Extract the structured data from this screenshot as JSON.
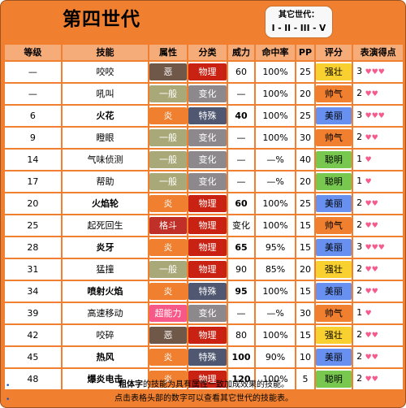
{
  "header": {
    "title": "第四世代",
    "other_gens_label": "其它世代：",
    "other_gens": [
      "I",
      "II",
      "III",
      "V"
    ],
    "separator": "-"
  },
  "columns": [
    "等级",
    "技能",
    "属性",
    "分类",
    "威力",
    "命中率",
    "PP",
    "评分",
    "表演得点"
  ],
  "colors": {
    "dark": "#705848",
    "normal": "#A8A878",
    "fire": "#F08030",
    "fighting": "#C03028",
    "psychic": "#F85888",
    "physical": "#C92112",
    "status": "#8C888C",
    "special": "#4F5870",
    "tough": "#F8D030",
    "cool": "#F08030",
    "beauty": "#6890F0",
    "clever": "#78C850",
    "heart": "#F75A8B"
  },
  "rows": [
    {
      "level": "—",
      "move": "咬咬",
      "bold": false,
      "type": "恶",
      "type_key": "dark",
      "cat": "物理",
      "cat_key": "physical",
      "power": "60",
      "power_bold": false,
      "acc": "100%",
      "pp": "25",
      "contest": "强壮",
      "contest_key": "tough",
      "points": "3",
      "hearts": "♥♥♥"
    },
    {
      "level": "—",
      "move": "吼叫",
      "bold": false,
      "type": "一般",
      "type_key": "normal",
      "cat": "变化",
      "cat_key": "status",
      "power": "—",
      "power_bold": false,
      "acc": "100%",
      "pp": "20",
      "contest": "帅气",
      "contest_key": "cool",
      "points": "2",
      "hearts": "♥♥"
    },
    {
      "level": "6",
      "move": "火花",
      "bold": true,
      "type": "炎",
      "type_key": "fire",
      "cat": "特殊",
      "cat_key": "special",
      "power": "40",
      "power_bold": true,
      "acc": "100%",
      "pp": "25",
      "contest": "美丽",
      "contest_key": "beauty",
      "points": "3",
      "hearts": "♥♥♥"
    },
    {
      "level": "9",
      "move": "瞪眼",
      "bold": false,
      "type": "一般",
      "type_key": "normal",
      "cat": "变化",
      "cat_key": "status",
      "power": "—",
      "power_bold": false,
      "acc": "100%",
      "pp": "30",
      "contest": "帅气",
      "contest_key": "cool",
      "points": "2",
      "hearts": "♥♥"
    },
    {
      "level": "14",
      "move": "气味侦测",
      "bold": false,
      "type": "一般",
      "type_key": "normal",
      "cat": "变化",
      "cat_key": "status",
      "power": "—",
      "power_bold": false,
      "acc": "—%",
      "pp": "40",
      "contest": "聪明",
      "contest_key": "clever",
      "points": "1",
      "hearts": "♥"
    },
    {
      "level": "17",
      "move": "帮助",
      "bold": false,
      "type": "一般",
      "type_key": "normal",
      "cat": "变化",
      "cat_key": "status",
      "power": "—",
      "power_bold": false,
      "acc": "—%",
      "pp": "20",
      "contest": "聪明",
      "contest_key": "clever",
      "points": "1",
      "hearts": "♥"
    },
    {
      "level": "20",
      "move": "火焰轮",
      "bold": true,
      "type": "炎",
      "type_key": "fire",
      "cat": "物理",
      "cat_key": "physical",
      "power": "60",
      "power_bold": true,
      "acc": "100%",
      "pp": "25",
      "contest": "美丽",
      "contest_key": "beauty",
      "points": "2",
      "hearts": "♥♥"
    },
    {
      "level": "25",
      "move": "起死回生",
      "bold": false,
      "type": "格斗",
      "type_key": "fighting",
      "cat": "物理",
      "cat_key": "physical",
      "power": "变化",
      "power_bold": false,
      "acc": "100%",
      "pp": "15",
      "contest": "帅气",
      "contest_key": "cool",
      "points": "2",
      "hearts": "♥♥"
    },
    {
      "level": "28",
      "move": "炎牙",
      "bold": true,
      "type": "炎",
      "type_key": "fire",
      "cat": "物理",
      "cat_key": "physical",
      "power": "65",
      "power_bold": true,
      "acc": "95%",
      "pp": "15",
      "contest": "美丽",
      "contest_key": "beauty",
      "points": "3",
      "hearts": "♥♥♥"
    },
    {
      "level": "31",
      "move": "猛撞",
      "bold": false,
      "type": "一般",
      "type_key": "normal",
      "cat": "物理",
      "cat_key": "physical",
      "power": "90",
      "power_bold": false,
      "acc": "85%",
      "pp": "20",
      "contest": "强壮",
      "contest_key": "tough",
      "points": "2",
      "hearts": "♥♥"
    },
    {
      "level": "34",
      "move": "喷射火焰",
      "bold": true,
      "type": "炎",
      "type_key": "fire",
      "cat": "特殊",
      "cat_key": "special",
      "power": "95",
      "power_bold": true,
      "acc": "100%",
      "pp": "15",
      "contest": "美丽",
      "contest_key": "beauty",
      "points": "2",
      "hearts": "♥♥"
    },
    {
      "level": "39",
      "move": "高速移动",
      "bold": false,
      "type": "超能力",
      "type_key": "psychic",
      "cat": "变化",
      "cat_key": "status",
      "power": "—",
      "power_bold": false,
      "acc": "—%",
      "pp": "30",
      "contest": "帅气",
      "contest_key": "cool",
      "points": "1",
      "hearts": "♥"
    },
    {
      "level": "42",
      "move": "咬碎",
      "bold": false,
      "type": "恶",
      "type_key": "dark",
      "cat": "物理",
      "cat_key": "physical",
      "power": "80",
      "power_bold": false,
      "acc": "100%",
      "pp": "15",
      "contest": "强壮",
      "contest_key": "tough",
      "points": "2",
      "hearts": "♥♥"
    },
    {
      "level": "45",
      "move": "热风",
      "bold": true,
      "type": "炎",
      "type_key": "fire",
      "cat": "特殊",
      "cat_key": "special",
      "power": "100",
      "power_bold": true,
      "acc": "90%",
      "pp": "10",
      "contest": "美丽",
      "contest_key": "beauty",
      "points": "2",
      "hearts": "♥♥"
    },
    {
      "level": "48",
      "move": "爆炎电击",
      "bold": true,
      "type": "炎",
      "type_key": "fire",
      "cat": "物理",
      "cat_key": "physical",
      "power": "120",
      "power_bold": true,
      "acc": "100%",
      "pp": "5",
      "contest": "聪明",
      "contest_key": "clever",
      "points": "2",
      "hearts": "♥♥"
    }
  ],
  "footer": {
    "line1_bold": "粗体字",
    "line1_rest": "的技能为具有属性一致加成效果的技能。",
    "line2": "点击表格头部的数字可以查看其它世代的技能表。",
    "bullet": "•"
  }
}
